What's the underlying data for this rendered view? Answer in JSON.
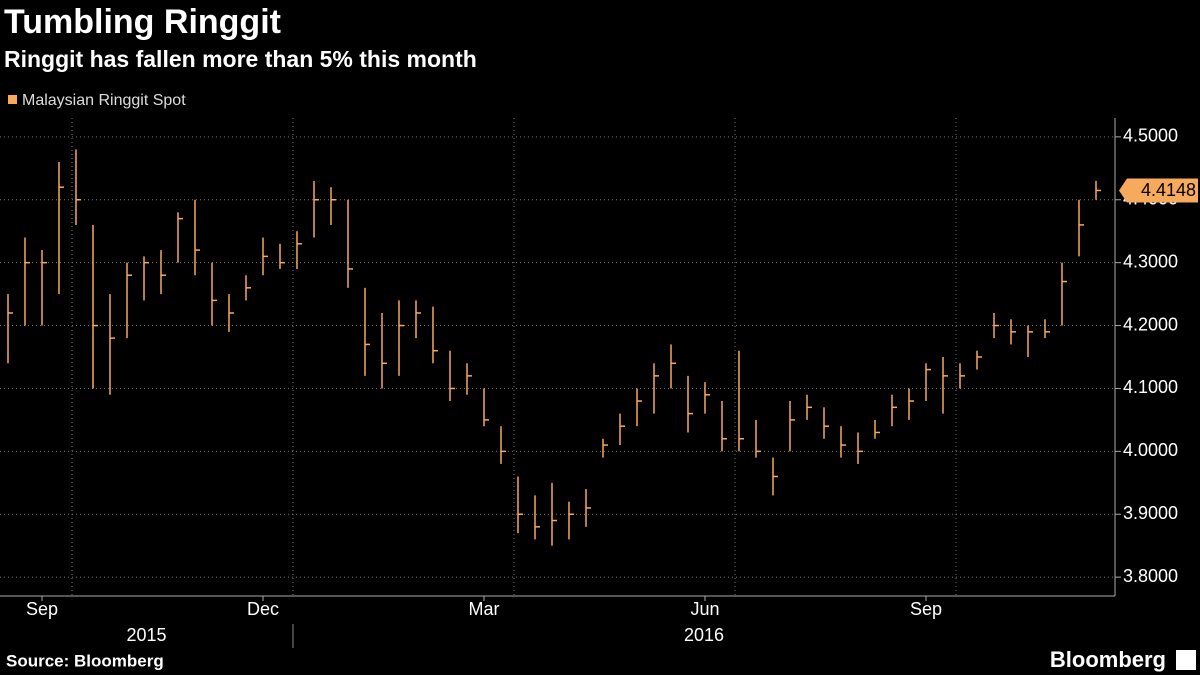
{
  "chart_data": {
    "type": "ohlc",
    "title": "Tumbling Ringgit",
    "subtitle": "Ringgit has fallen more than 5% this month",
    "source": "Source: Bloomberg",
    "brand": "Bloomberg",
    "series_name": "Malaysian Ringgit Spot",
    "color": "#f7a95c",
    "categories": [
      null,
      null,
      "Sep",
      null,
      null,
      null,
      null,
      null,
      null,
      null,
      null,
      null,
      null,
      null,
      null,
      "Dec",
      null,
      null,
      null,
      null,
      null,
      null,
      null,
      null,
      null,
      null,
      null,
      null,
      "Mar",
      null,
      null,
      null,
      null,
      null,
      null,
      null,
      null,
      null,
      null,
      null,
      null,
      "Jun",
      null,
      null,
      null,
      null,
      null,
      null,
      null,
      null,
      null,
      null,
      null,
      null,
      "Sep",
      null,
      null,
      null,
      null,
      null,
      null,
      null,
      null,
      null,
      null
    ],
    "years": [
      "2015",
      "2016"
    ],
    "high": [
      4.25,
      4.34,
      4.32,
      4.46,
      4.48,
      4.36,
      4.25,
      4.3,
      4.31,
      4.32,
      4.38,
      4.4,
      4.3,
      4.25,
      4.28,
      4.34,
      4.33,
      4.35,
      4.43,
      4.42,
      4.4,
      4.26,
      4.22,
      4.24,
      4.24,
      4.23,
      4.16,
      4.14,
      4.1,
      4.04,
      3.96,
      3.93,
      3.95,
      3.92,
      3.94,
      4.02,
      4.06,
      4.1,
      4.14,
      4.17,
      4.12,
      4.11,
      4.08,
      4.16,
      4.05,
      3.99,
      4.08,
      4.09,
      4.07,
      4.04,
      4.03,
      4.05,
      4.09,
      4.1,
      4.14,
      4.15,
      4.14,
      4.16,
      4.22,
      4.21,
      4.2,
      4.21,
      4.3,
      4.4,
      4.43
    ],
    "low": [
      4.14,
      4.2,
      4.2,
      4.25,
      4.36,
      4.1,
      4.09,
      4.18,
      4.24,
      4.25,
      4.3,
      4.28,
      4.2,
      4.19,
      4.24,
      4.28,
      4.29,
      4.29,
      4.34,
      4.36,
      4.26,
      4.12,
      4.1,
      4.12,
      4.18,
      4.14,
      4.08,
      4.09,
      4.04,
      3.98,
      3.87,
      3.86,
      3.85,
      3.86,
      3.88,
      3.99,
      4.01,
      4.04,
      4.06,
      4.1,
      4.03,
      4.06,
      4.0,
      4.0,
      3.99,
      3.93,
      4.0,
      4.05,
      4.02,
      3.99,
      3.98,
      4.02,
      4.04,
      4.05,
      4.08,
      4.06,
      4.1,
      4.13,
      4.18,
      4.17,
      4.15,
      4.18,
      4.2,
      4.31,
      4.4
    ],
    "close": [
      4.22,
      4.3,
      4.3,
      4.42,
      4.4,
      4.2,
      4.18,
      4.28,
      4.3,
      4.28,
      4.37,
      4.32,
      4.24,
      4.22,
      4.26,
      4.31,
      4.3,
      4.33,
      4.4,
      4.4,
      4.29,
      4.17,
      4.14,
      4.2,
      4.22,
      4.16,
      4.1,
      4.12,
      4.05,
      4.0,
      3.9,
      3.88,
      3.89,
      3.9,
      3.91,
      4.01,
      4.04,
      4.08,
      4.12,
      4.14,
      4.06,
      4.09,
      4.02,
      4.02,
      4.0,
      3.96,
      4.05,
      4.07,
      4.04,
      4.01,
      4.0,
      4.03,
      4.07,
      4.08,
      4.13,
      4.12,
      4.12,
      4.15,
      4.2,
      4.19,
      4.19,
      4.19,
      4.27,
      4.36,
      4.4148
    ],
    "ylim": [
      3.77,
      4.53
    ],
    "yticks": [
      {
        "value": 3.8,
        "label": "3.8000"
      },
      {
        "value": 3.9,
        "label": "3.9000"
      },
      {
        "value": 4.0,
        "label": "4.0000"
      },
      {
        "value": 4.1,
        "label": "4.1000"
      },
      {
        "value": 4.2,
        "label": "4.2000"
      },
      {
        "value": 4.3,
        "label": "4.3000"
      },
      {
        "value": 4.4,
        "label": "4.4000"
      },
      {
        "value": 4.5,
        "label": "4.5000"
      }
    ],
    "grid": true
  }
}
